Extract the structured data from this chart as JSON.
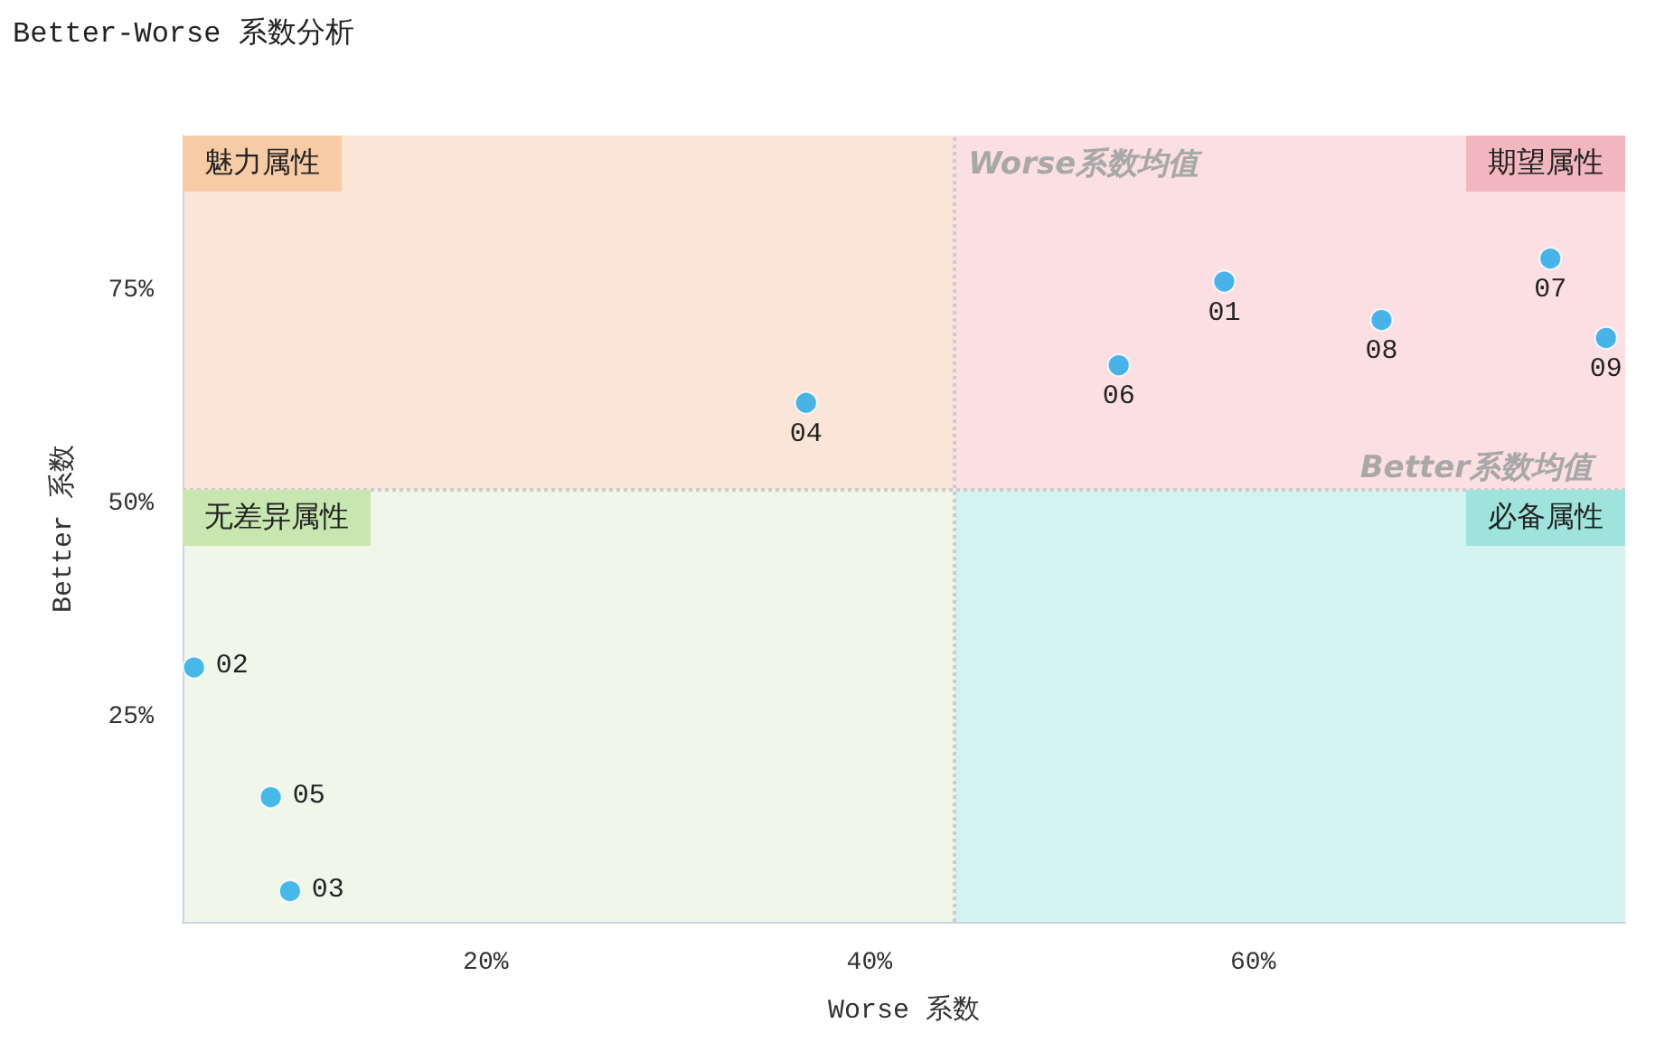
{
  "chart_data": {
    "type": "scatter",
    "title": "Better-Worse 系数分析",
    "xlabel": "Worse 系数",
    "ylabel": "Better 系数",
    "x": [
      58.5,
      4.8,
      9.8,
      36.7,
      8.8,
      53.0,
      75.5,
      66.7,
      78.4
    ],
    "values": [
      76.1,
      30.9,
      4.7,
      61.9,
      15.7,
      66.3,
      78.8,
      71.6,
      69.5
    ],
    "color": "#1ba8ea",
    "marker": "circle",
    "grid": false,
    "xlim": [
      4.2,
      79.4
    ],
    "xticks": [
      {
        "value": 20,
        "label": "20%"
      },
      {
        "value": 40,
        "label": "40%"
      },
      {
        "value": 60,
        "label": "60%"
      }
    ],
    "ylim": [
      1.1,
      93.2
    ],
    "yticks": [
      {
        "value": 25,
        "label": "25%"
      },
      {
        "value": 50,
        "label": "50%"
      },
      {
        "value": 75,
        "label": "75%"
      }
    ],
    "ref_lines": [
      {
        "axis": "x",
        "value": 44.4,
        "label": "Worse系数均值",
        "color": "#cccccc",
        "line_style": "dotted"
      },
      {
        "axis": "y",
        "value": 51.7,
        "label": "Better系数均值",
        "color": "#cccccc",
        "line_style": "dotted"
      }
    ],
    "annotations": [
      "魅力属性",
      "期望属性",
      "无差异属性",
      "必备属性",
      {
        "text": "01",
        "x": 58.5,
        "y": 76.1
      },
      {
        "text": "02",
        "x": 4.8,
        "y": 30.9
      },
      {
        "text": "03",
        "x": 9.8,
        "y": 4.7
      },
      {
        "text": "04",
        "x": 36.7,
        "y": 61.9
      },
      {
        "text": "05",
        "x": 8.8,
        "y": 15.7
      },
      {
        "text": "06",
        "x": 53.0,
        "y": 66.3
      },
      {
        "text": "07",
        "x": 75.5,
        "y": 78.8
      },
      {
        "text": "08",
        "x": 66.7,
        "y": 71.6
      },
      {
        "text": "09",
        "x": 78.4,
        "y": 69.5
      }
    ]
  }
}
